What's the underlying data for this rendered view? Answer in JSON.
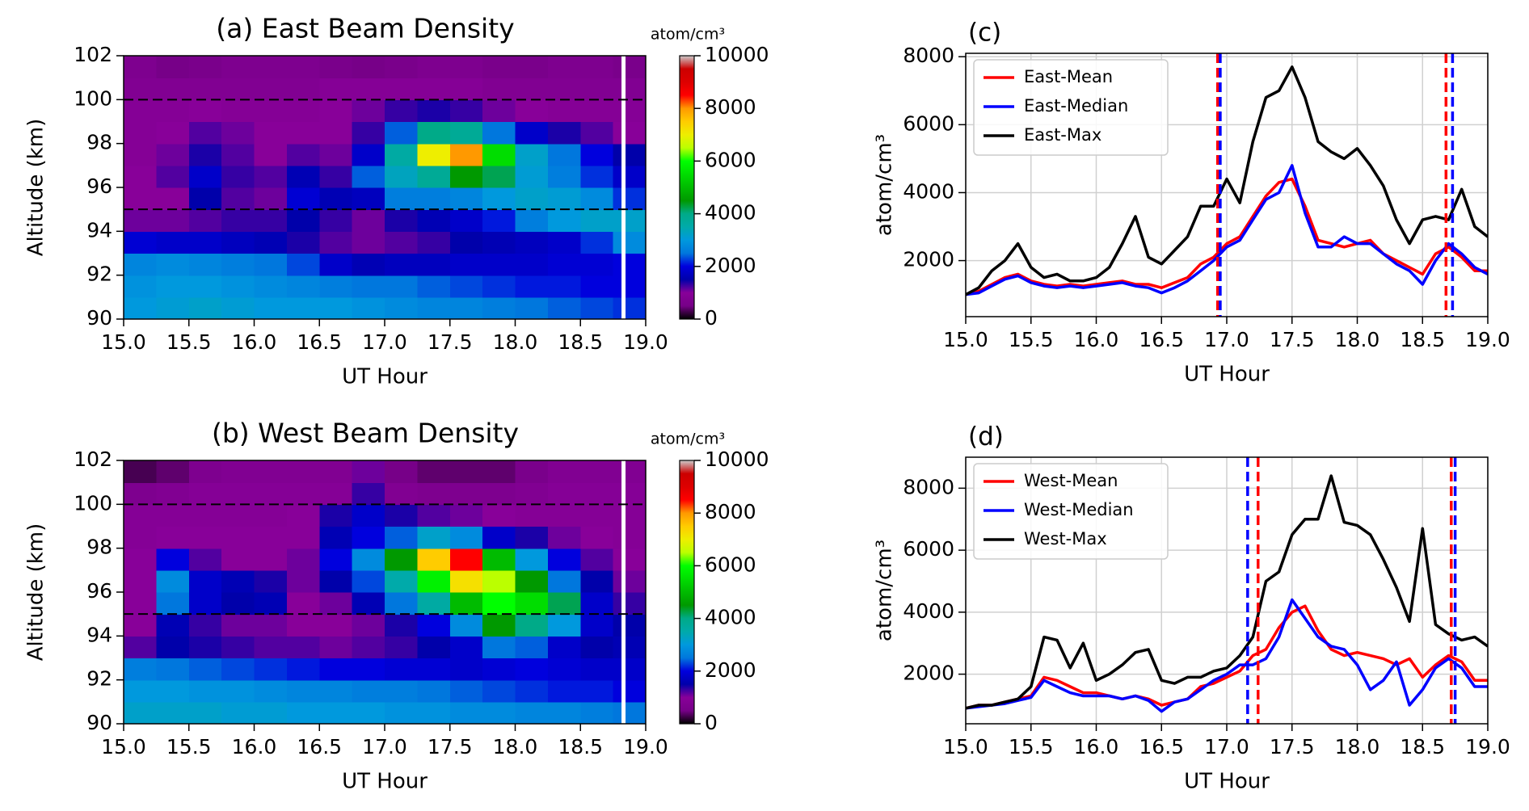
{
  "chart_data": [
    {
      "type": "heatmap",
      "title": "(a)  East Beam Density",
      "xlabel": "UT Hour",
      "ylabel": "Altitude (km)",
      "colormap": "nipy_spectral",
      "colorbar_label": "atom/cm³",
      "clim": [
        0,
        10000
      ],
      "cticks": [
        0,
        2000,
        4000,
        6000,
        8000,
        10000
      ],
      "xlim": [
        15,
        19
      ],
      "ylim": [
        90,
        102
      ],
      "xticks": [
        {
          "value": 15,
          "label": "15.0"
        },
        15.5,
        {
          "value": 16,
          "label": "16.0"
        },
        16.5,
        {
          "value": 17,
          "label": "17.0"
        },
        17.5,
        {
          "value": 18,
          "label": "18.0"
        },
        18.5,
        {
          "value": 19,
          "label": "19.0"
        }
      ],
      "yticks": [
        90,
        92,
        94,
        96,
        98,
        100,
        102
      ],
      "hlines": [
        95,
        100
      ],
      "vlines": [
        {
          "x": 18.83,
          "color": "#ffffff"
        }
      ],
      "x": [
        15.125,
        15.375,
        15.625,
        15.875,
        16.125,
        16.375,
        16.625,
        16.875,
        17.125,
        17.375,
        17.625,
        17.875,
        18.125,
        18.375,
        18.625,
        18.875
      ],
      "y": [
        90.5,
        91.5,
        92.5,
        93.5,
        94.5,
        95.5,
        96.5,
        97.5,
        98.5,
        99.5,
        100.5,
        101.5
      ],
      "z": [
        [
          3000,
          3100,
          3200,
          3100,
          3000,
          3000,
          3000,
          2900,
          2800,
          2700,
          2700,
          2600,
          2500,
          2400,
          2300,
          2200
        ],
        [
          2900,
          3000,
          3000,
          2900,
          2800,
          2700,
          2600,
          2500,
          2500,
          2400,
          2300,
          2200,
          2100,
          2100,
          2000,
          2000
        ],
        [
          2700,
          2800,
          2700,
          2600,
          2500,
          2300,
          1800,
          1600,
          1700,
          1700,
          1800,
          1800,
          1800,
          1900,
          1900,
          2000
        ],
        [
          1900,
          1800,
          1800,
          1700,
          1600,
          1400,
          1200,
          1100,
          1200,
          1300,
          1500,
          1600,
          1700,
          1800,
          2200,
          2800
        ],
        [
          1100,
          1100,
          1200,
          1300,
          1300,
          1500,
          1300,
          1100,
          1400,
          1600,
          1800,
          2100,
          2600,
          3000,
          3200,
          3200
        ],
        [
          1000,
          1000,
          1500,
          1200,
          1100,
          1900,
          1600,
          1700,
          2600,
          2600,
          2700,
          3000,
          3200,
          3100,
          2800,
          2200
        ],
        [
          1000,
          1200,
          1800,
          1300,
          1200,
          1600,
          1300,
          2400,
          3300,
          3800,
          4500,
          4200,
          3100,
          2600,
          2200,
          1800
        ],
        [
          900,
          1100,
          1400,
          1200,
          1000,
          1200,
          1100,
          1800,
          3600,
          7000,
          8000,
          5500,
          3200,
          2500,
          2000,
          1500
        ],
        [
          900,
          1000,
          1200,
          1100,
          1000,
          1000,
          1000,
          1300,
          2400,
          4000,
          3800,
          2500,
          1800,
          1400,
          1200,
          1000
        ],
        [
          900,
          900,
          1000,
          900,
          900,
          900,
          1000,
          1100,
          1300,
          1400,
          1300,
          1100,
          1000,
          900,
          900,
          900
        ],
        [
          800,
          800,
          800,
          800,
          800,
          800,
          900,
          900,
          900,
          900,
          900,
          800,
          800,
          800,
          800,
          800
        ],
        [
          700,
          500,
          600,
          700,
          700,
          700,
          600,
          500,
          600,
          700,
          700,
          600,
          600,
          700,
          700,
          600
        ]
      ]
    },
    {
      "type": "heatmap",
      "title": "(b)  West Beam Density",
      "xlabel": "UT Hour",
      "ylabel": "Altitude (km)",
      "colormap": "nipy_spectral",
      "colorbar_label": "atom/cm³",
      "clim": [
        0,
        10000
      ],
      "cticks": [
        0,
        2000,
        4000,
        6000,
        8000,
        10000
      ],
      "xlim": [
        15,
        19
      ],
      "ylim": [
        90,
        102
      ],
      "xticks": [
        {
          "value": 15,
          "label": "15.0"
        },
        15.5,
        {
          "value": 16,
          "label": "16.0"
        },
        16.5,
        {
          "value": 17,
          "label": "17.0"
        },
        17.5,
        {
          "value": 18,
          "label": "18.0"
        },
        18.5,
        {
          "value": 19,
          "label": "19.0"
        }
      ],
      "yticks": [
        90,
        92,
        94,
        96,
        98,
        100,
        102
      ],
      "hlines": [
        95,
        100
      ],
      "vlines": [
        {
          "x": 18.83,
          "color": "#ffffff"
        }
      ],
      "x": [
        15.125,
        15.375,
        15.625,
        15.875,
        16.125,
        16.375,
        16.625,
        16.875,
        17.125,
        17.375,
        17.625,
        17.875,
        18.125,
        18.375,
        18.625,
        18.875
      ],
      "y": [
        90.5,
        91.5,
        92.5,
        93.5,
        94.5,
        95.5,
        96.5,
        97.5,
        98.5,
        99.5,
        100.5,
        101.5
      ],
      "z": [
        [
          3200,
          3200,
          3200,
          3100,
          3100,
          3000,
          3000,
          3000,
          2900,
          2900,
          2800,
          2800,
          2700,
          2700,
          2600,
          2500
        ],
        [
          3000,
          3000,
          2900,
          2900,
          2800,
          2700,
          2700,
          2600,
          2600,
          2500,
          2400,
          2300,
          2200,
          2100,
          2100,
          2000
        ],
        [
          2600,
          2500,
          2400,
          2300,
          2200,
          2100,
          2000,
          2000,
          1900,
          1900,
          1800,
          1900,
          2000,
          1900,
          1800,
          1800
        ],
        [
          1200,
          1500,
          1400,
          1300,
          1200,
          1200,
          1100,
          1200,
          1300,
          1500,
          1800,
          2500,
          2400,
          1800,
          1500,
          1600
        ],
        [
          1000,
          1600,
          1300,
          1100,
          1100,
          1000,
          1000,
          1100,
          1400,
          2000,
          2800,
          4500,
          4000,
          3000,
          1800,
          1500
        ],
        [
          1000,
          2500,
          1800,
          1500,
          1600,
          1000,
          1100,
          1600,
          2500,
          3600,
          5000,
          6000,
          5500,
          4200,
          1800,
          1300
        ],
        [
          1000,
          2800,
          1800,
          1600,
          1400,
          1100,
          1500,
          2300,
          3500,
          5800,
          7200,
          6500,
          4500,
          2500,
          1500,
          1100
        ],
        [
          1000,
          2000,
          1200,
          1000,
          1000,
          1100,
          2000,
          2800,
          4500,
          7500,
          8500,
          5000,
          3000,
          2000,
          1200,
          1000
        ],
        [
          900,
          1000,
          1000,
          1000,
          1000,
          1000,
          1600,
          2000,
          2400,
          3200,
          2800,
          1800,
          1400,
          1100,
          1000,
          900
        ],
        [
          900,
          900,
          900,
          900,
          900,
          1000,
          1400,
          1800,
          1400,
          1200,
          1100,
          1000,
          900,
          900,
          900,
          900
        ],
        [
          700,
          800,
          900,
          900,
          900,
          900,
          900,
          1300,
          800,
          700,
          700,
          700,
          800,
          900,
          900,
          900
        ],
        [
          300,
          400,
          700,
          800,
          800,
          800,
          800,
          1100,
          500,
          400,
          400,
          400,
          600,
          800,
          800,
          800
        ]
      ]
    },
    {
      "type": "line",
      "title": "(c)",
      "xlabel": "UT Hour",
      "ylabel": "atom/cm³",
      "grid": true,
      "legend": "upper-left",
      "xlim": [
        15,
        19
      ],
      "ylim": [
        350,
        8100
      ],
      "xticks": [
        {
          "value": 15,
          "label": "15.0"
        },
        15.5,
        {
          "value": 16,
          "label": "16.0"
        },
        16.5,
        {
          "value": 17,
          "label": "17.0"
        },
        17.5,
        {
          "value": 18,
          "label": "18.0"
        },
        18.5,
        {
          "value": 19,
          "label": "19.0"
        }
      ],
      "yticks": [
        2000,
        4000,
        6000,
        8000
      ],
      "vlines": [
        {
          "x": 16.93,
          "color": "#ff0000"
        },
        {
          "x": 16.95,
          "color": "#0000ff"
        },
        {
          "x": 18.68,
          "color": "#ff0000"
        },
        {
          "x": 18.73,
          "color": "#0000ff"
        }
      ],
      "x": [
        15,
        15.1,
        15.2,
        15.3,
        15.4,
        15.5,
        15.6,
        15.7,
        15.8,
        15.9,
        16,
        16.1,
        16.2,
        16.3,
        16.4,
        16.5,
        16.6,
        16.7,
        16.8,
        16.9,
        17,
        17.1,
        17.2,
        17.3,
        17.4,
        17.5,
        17.6,
        17.7,
        17.8,
        17.9,
        18,
        18.1,
        18.2,
        18.3,
        18.4,
        18.5,
        18.6,
        18.7,
        18.8,
        18.9,
        19
      ],
      "series": [
        {
          "name": "East-Mean",
          "color": "#ff0000",
          "values": [
            1000,
            1100,
            1300,
            1500,
            1600,
            1400,
            1300,
            1250,
            1300,
            1250,
            1300,
            1350,
            1400,
            1300,
            1300,
            1200,
            1350,
            1500,
            1900,
            2100,
            2500,
            2700,
            3300,
            3900,
            4300,
            4400,
            3600,
            2600,
            2500,
            2400,
            2500,
            2600,
            2200,
            2000,
            1800,
            1600,
            2200,
            2400,
            2100,
            1700,
            1700
          ]
        },
        {
          "name": "East-Median",
          "color": "#0000ff",
          "values": [
            1000,
            1050,
            1250,
            1450,
            1550,
            1350,
            1250,
            1200,
            1250,
            1200,
            1250,
            1300,
            1350,
            1250,
            1200,
            1050,
            1200,
            1400,
            1700,
            2000,
            2400,
            2600,
            3200,
            3800,
            4000,
            4800,
            3400,
            2400,
            2400,
            2700,
            2500,
            2500,
            2200,
            1900,
            1700,
            1300,
            2000,
            2500,
            2200,
            1800,
            1600
          ]
        },
        {
          "name": "East-Max",
          "color": "#000000",
          "values": [
            1000,
            1200,
            1700,
            2000,
            2500,
            1800,
            1500,
            1600,
            1400,
            1400,
            1500,
            1800,
            2500,
            3300,
            2100,
            1900,
            2300,
            2700,
            3600,
            3600,
            4400,
            3700,
            5500,
            6800,
            7000,
            7700,
            6800,
            5500,
            5200,
            5000,
            5300,
            4800,
            4200,
            3200,
            2500,
            3200,
            3300,
            3200,
            4100,
            3000,
            2700
          ]
        }
      ]
    },
    {
      "type": "line",
      "title": "(d)",
      "xlabel": "UT Hour",
      "ylabel": "atom/cm³",
      "grid": true,
      "legend": "upper-left",
      "xlim": [
        15,
        19
      ],
      "ylim": [
        400,
        9000
      ],
      "xticks": [
        {
          "value": 15,
          "label": "15.0"
        },
        15.5,
        {
          "value": 16,
          "label": "16.0"
        },
        16.5,
        {
          "value": 17,
          "label": "17.0"
        },
        17.5,
        {
          "value": 18,
          "label": "18.0"
        },
        18.5,
        {
          "value": 19,
          "label": "19.0"
        }
      ],
      "yticks": [
        2000,
        4000,
        6000,
        8000
      ],
      "vlines": [
        {
          "x": 17.16,
          "color": "#0000ff"
        },
        {
          "x": 17.24,
          "color": "#ff0000"
        },
        {
          "x": 18.72,
          "color": "#ff0000"
        },
        {
          "x": 18.75,
          "color": "#0000ff"
        }
      ],
      "x": [
        15,
        15.1,
        15.2,
        15.3,
        15.4,
        15.5,
        15.6,
        15.7,
        15.8,
        15.9,
        16,
        16.1,
        16.2,
        16.3,
        16.4,
        16.5,
        16.6,
        16.7,
        16.8,
        16.9,
        17,
        17.1,
        17.2,
        17.3,
        17.4,
        17.5,
        17.6,
        17.7,
        17.8,
        17.9,
        18,
        18.1,
        18.2,
        18.3,
        18.4,
        18.5,
        18.6,
        18.7,
        18.8,
        18.9,
        19
      ],
      "series": [
        {
          "name": "West-Mean",
          "color": "#ff0000",
          "values": [
            900,
            1000,
            1000,
            1100,
            1200,
            1300,
            1900,
            1800,
            1600,
            1400,
            1400,
            1300,
            1200,
            1300,
            1200,
            1000,
            1100,
            1200,
            1600,
            1700,
            1900,
            2100,
            2600,
            2800,
            3500,
            4000,
            4200,
            3400,
            2800,
            2600,
            2700,
            2600,
            2500,
            2300,
            2500,
            1900,
            2300,
            2600,
            2400,
            1800,
            1800
          ]
        },
        {
          "name": "West-Median",
          "color": "#0000ff",
          "values": [
            900,
            950,
            1000,
            1050,
            1150,
            1250,
            1800,
            1600,
            1400,
            1300,
            1300,
            1300,
            1200,
            1300,
            1150,
            800,
            1100,
            1200,
            1500,
            1800,
            2000,
            2300,
            2300,
            2500,
            3200,
            4400,
            3800,
            3200,
            2900,
            2800,
            2300,
            1500,
            1800,
            2400,
            1000,
            1500,
            2200,
            2500,
            2200,
            1600,
            1600
          ]
        },
        {
          "name": "West-Max",
          "color": "#000000",
          "values": [
            900,
            1000,
            1000,
            1100,
            1200,
            1600,
            3200,
            3100,
            2200,
            3000,
            1800,
            2000,
            2300,
            2700,
            2800,
            1800,
            1700,
            1900,
            1900,
            2100,
            2200,
            2600,
            3200,
            5000,
            5300,
            6500,
            7000,
            7000,
            8400,
            6900,
            6800,
            6500,
            5700,
            4800,
            3700,
            6700,
            3600,
            3300,
            3100,
            3200,
            2900
          ]
        }
      ]
    }
  ]
}
